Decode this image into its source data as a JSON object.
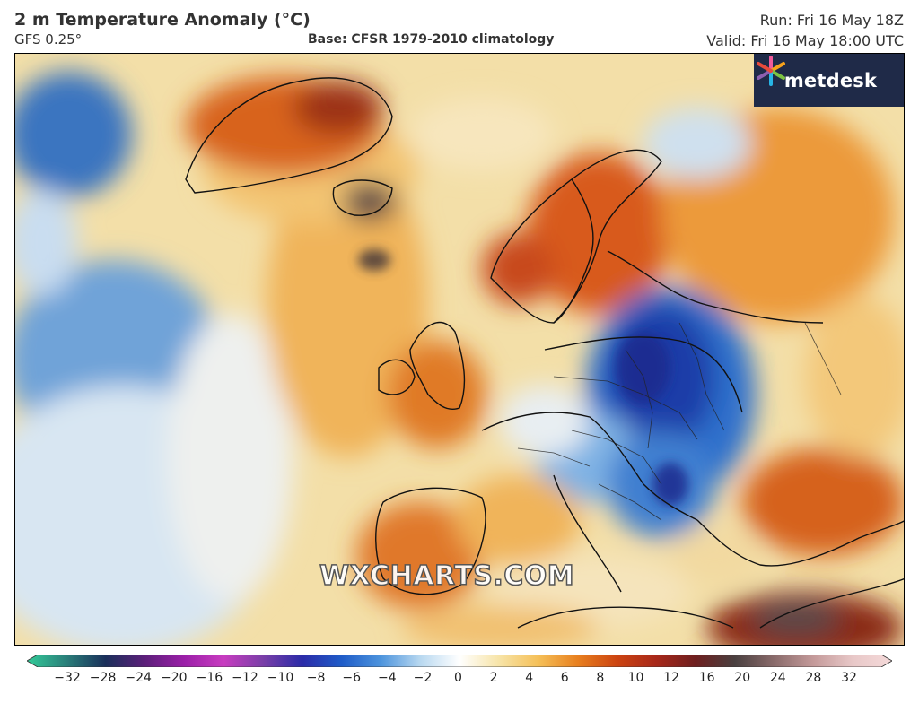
{
  "header": {
    "title": "2 m Temperature Anomaly (°C)",
    "model": "GFS 0.25°",
    "base": "Base: CFSR 1979-2010 climatology",
    "run": "Run: Fri 16 May 18Z",
    "valid": "Valid: Fri 16 May 18:00 UTC"
  },
  "logo": {
    "text": "metdesk"
  },
  "watermark": "WXCHARTS.COM",
  "colorbar": {
    "ticks": [
      "−32",
      "−28",
      "−24",
      "−20",
      "−16",
      "−12",
      "−10",
      "−8",
      "−6",
      "−4",
      "−2",
      "0",
      "2",
      "4",
      "6",
      "8",
      "10",
      "12",
      "16",
      "20",
      "24",
      "28",
      "32"
    ],
    "colors": [
      "#33cc99",
      "#2a7f7a",
      "#1a2f5a",
      "#5c1f7a",
      "#9b1fa8",
      "#c83cc0",
      "#7a3fa8",
      "#2b2ba8",
      "#1f5cc8",
      "#4d94dd",
      "#b8d8f0",
      "#ffffff",
      "#f7e4a8",
      "#f5c058",
      "#e8801f",
      "#cc4411",
      "#a8281a",
      "#6e1f1f",
      "#4a4040",
      "#8a6b6b",
      "#c49a9a",
      "#e8c8c8",
      "#f5dada"
    ]
  }
}
